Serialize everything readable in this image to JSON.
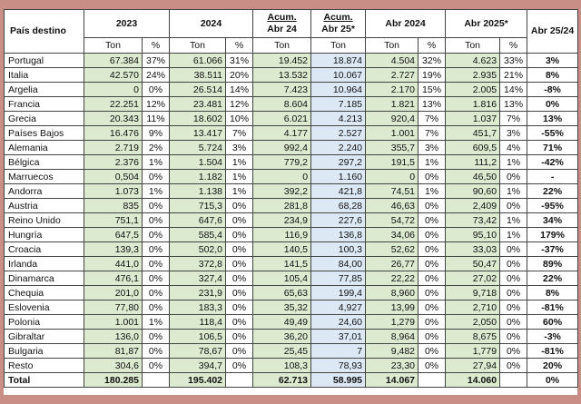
{
  "headers": {
    "country": "País destino",
    "y2023": "2023",
    "y2024": "2024",
    "acum24_line1": "Acum.",
    "acum24_line2": "Abr 24",
    "acum25_line1": "Acum.",
    "acum25_line2": "Abr 25*",
    "abr2024": "Abr 2024",
    "abr2025": "Abr 2025*",
    "var": "Abr 25/24",
    "ton": "Ton",
    "pct": "%"
  },
  "rows": [
    {
      "country": "Portugal",
      "t2023": "67.384",
      "p2023": "37%",
      "t2024": "61.066",
      "p2024": "31%",
      "acum24": "19.452",
      "acum25": "18.874",
      "abr24": "4.504",
      "pabr24": "32%",
      "abr25": "4.623",
      "pabr25": "33%",
      "var": "3%"
    },
    {
      "country": "Italia",
      "t2023": "42.570",
      "p2023": "24%",
      "t2024": "38.511",
      "p2024": "20%",
      "acum24": "13.532",
      "acum25": "10.067",
      "abr24": "2.727",
      "pabr24": "19%",
      "abr25": "2.935",
      "pabr25": "21%",
      "var": "8%"
    },
    {
      "country": "Argelia",
      "t2023": "0",
      "p2023": "0%",
      "t2024": "26.514",
      "p2024": "14%",
      "acum24": "7.423",
      "acum25": "10.964",
      "abr24": "2.170",
      "pabr24": "15%",
      "abr25": "2.005",
      "pabr25": "14%",
      "var": "-8%"
    },
    {
      "country": "Francia",
      "t2023": "22.251",
      "p2023": "12%",
      "t2024": "23.481",
      "p2024": "12%",
      "acum24": "8.604",
      "acum25": "7.185",
      "abr24": "1.821",
      "pabr24": "13%",
      "abr25": "1.816",
      "pabr25": "13%",
      "var": "0%"
    },
    {
      "country": "Grecia",
      "t2023": "20.343",
      "p2023": "11%",
      "t2024": "18.602",
      "p2024": "10%",
      "acum24": "6.021",
      "acum25": "4.213",
      "abr24": "920,4",
      "pabr24": "7%",
      "abr25": "1.037",
      "pabr25": "7%",
      "var": "13%"
    },
    {
      "country": "Países Bajos",
      "t2023": "16.476",
      "p2023": "9%",
      "t2024": "13.417",
      "p2024": "7%",
      "acum24": "4.177",
      "acum25": "2.527",
      "abr24": "1.001",
      "pabr24": "7%",
      "abr25": "451,7",
      "pabr25": "3%",
      "var": "-55%"
    },
    {
      "country": "Alemania",
      "t2023": "2.719",
      "p2023": "2%",
      "t2024": "5.724",
      "p2024": "3%",
      "acum24": "992,4",
      "acum25": "2.240",
      "abr24": "355,7",
      "pabr24": "3%",
      "abr25": "609,5",
      "pabr25": "4%",
      "var": "71%"
    },
    {
      "country": "Bélgica",
      "t2023": "2.376",
      "p2023": "1%",
      "t2024": "1.504",
      "p2024": "1%",
      "acum24": "779,2",
      "acum25": "297,2",
      "abr24": "191,5",
      "pabr24": "1%",
      "abr25": "111,2",
      "pabr25": "1%",
      "var": "-42%"
    },
    {
      "country": "Marruecos",
      "t2023": "0,504",
      "p2023": "0%",
      "t2024": "1.182",
      "p2024": "1%",
      "acum24": "0",
      "acum25": "1.160",
      "abr24": "0",
      "pabr24": "0%",
      "abr25": "46,50",
      "pabr25": "0%",
      "var": "-"
    },
    {
      "country": "Andorra",
      "t2023": "1.073",
      "p2023": "1%",
      "t2024": "1.138",
      "p2024": "1%",
      "acum24": "392,2",
      "acum25": "421,8",
      "abr24": "74,51",
      "pabr24": "1%",
      "abr25": "90,60",
      "pabr25": "1%",
      "var": "22%"
    },
    {
      "country": "Austria",
      "t2023": "835",
      "p2023": "0%",
      "t2024": "715,3",
      "p2024": "0%",
      "acum24": "281,8",
      "acum25": "68,28",
      "abr24": "46,63",
      "pabr24": "0%",
      "abr25": "2,409",
      "pabr25": "0%",
      "var": "-95%"
    },
    {
      "country": "Reino Unido",
      "t2023": "751,1",
      "p2023": "0%",
      "t2024": "647,6",
      "p2024": "0%",
      "acum24": "234,9",
      "acum25": "227,6",
      "abr24": "54,72",
      "pabr24": "0%",
      "abr25": "73,42",
      "pabr25": "1%",
      "var": "34%"
    },
    {
      "country": "Hungría",
      "t2023": "647,5",
      "p2023": "0%",
      "t2024": "585,4",
      "p2024": "0%",
      "acum24": "116,9",
      "acum25": "136,8",
      "abr24": "34,06",
      "pabr24": "0%",
      "abr25": "95,10",
      "pabr25": "1%",
      "var": "179%"
    },
    {
      "country": "Croacia",
      "t2023": "139,3",
      "p2023": "0%",
      "t2024": "502,0",
      "p2024": "0%",
      "acum24": "140,5",
      "acum25": "100,3",
      "abr24": "52,62",
      "pabr24": "0%",
      "abr25": "33,03",
      "pabr25": "0%",
      "var": "-37%"
    },
    {
      "country": "Irlanda",
      "t2023": "441,0",
      "p2023": "0%",
      "t2024": "372,8",
      "p2024": "0%",
      "acum24": "141,5",
      "acum25": "84,00",
      "abr24": "26,77",
      "pabr24": "0%",
      "abr25": "50,47",
      "pabr25": "0%",
      "var": "89%"
    },
    {
      "country": "Dinamarca",
      "t2023": "476,1",
      "p2023": "0%",
      "t2024": "327,4",
      "p2024": "0%",
      "acum24": "105,4",
      "acum25": "77,85",
      "abr24": "22,22",
      "pabr24": "0%",
      "abr25": "27,02",
      "pabr25": "0%",
      "var": "22%"
    },
    {
      "country": "Chequia",
      "t2023": "201,0",
      "p2023": "0%",
      "t2024": "231,9",
      "p2024": "0%",
      "acum24": "65,63",
      "acum25": "199,4",
      "abr24": "8,960",
      "pabr24": "0%",
      "abr25": "9,718",
      "pabr25": "0%",
      "var": "8%"
    },
    {
      "country": "Eslovenia",
      "t2023": "77,80",
      "p2023": "0%",
      "t2024": "183,3",
      "p2024": "0%",
      "acum24": "35,32",
      "acum25": "4,927",
      "abr24": "13,99",
      "pabr24": "0%",
      "abr25": "2,710",
      "pabr25": "0%",
      "var": "-81%"
    },
    {
      "country": "Polonia",
      "t2023": "1.001",
      "p2023": "1%",
      "t2024": "118,4",
      "p2024": "0%",
      "acum24": "49,49",
      "acum25": "24,60",
      "abr24": "1,279",
      "pabr24": "0%",
      "abr25": "2,050",
      "pabr25": "0%",
      "var": "60%"
    },
    {
      "country": "Gibraltar",
      "t2023": "136,0",
      "p2023": "0%",
      "t2024": "106,5",
      "p2024": "0%",
      "acum24": "36,20",
      "acum25": "37,01",
      "abr24": "8,964",
      "pabr24": "0%",
      "abr25": "8,675",
      "pabr25": "0%",
      "var": "-3%"
    },
    {
      "country": "Bulgaria",
      "t2023": "81,87",
      "p2023": "0%",
      "t2024": "78,67",
      "p2024": "0%",
      "acum24": "25,45",
      "acum25": "7",
      "abr24": "9,482",
      "pabr24": "0%",
      "abr25": "1,779",
      "pabr25": "0%",
      "var": "-81%"
    },
    {
      "country": "Resto",
      "t2023": "304,6",
      "p2023": "0%",
      "t2024": "394,7",
      "p2024": "0%",
      "acum24": "108,3",
      "acum25": "78,93",
      "abr24": "23,30",
      "pabr24": "0%",
      "abr25": "27,94",
      "pabr25": "0%",
      "var": "20%"
    }
  ],
  "total": {
    "label": "Total",
    "t2023": "180.285",
    "t2024": "195.402",
    "acum24": "62.713",
    "acum25": "58.995",
    "abr24": "14.067",
    "abr25": "14.060",
    "var": "0%"
  },
  "colors": {
    "green_cell": "#dcebd0",
    "blue_cell": "#dce9f5",
    "background": "#c98f86"
  }
}
